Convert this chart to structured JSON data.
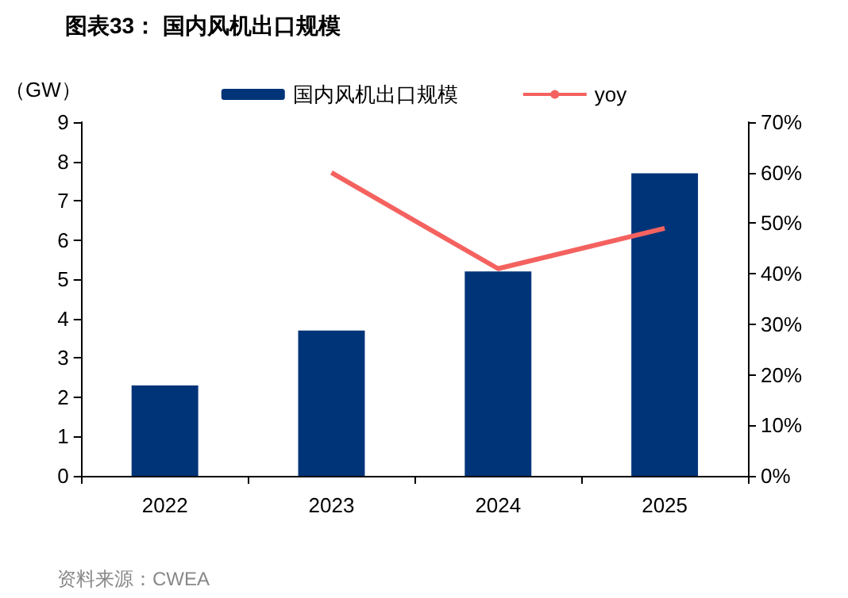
{
  "chart_data": {
    "type": "bar",
    "title": "图表33： 国内风机出口规模",
    "ylabel": "（GW）",
    "categories": [
      "2022",
      "2023",
      "2024",
      "2025"
    ],
    "series": [
      {
        "name": "国内风机出口规模",
        "color": "#003479",
        "values": [
          2.3,
          3.7,
          5.2,
          7.7
        ]
      },
      {
        "name": "yoy",
        "type": "line",
        "axis": "y2",
        "color": "#f4625f",
        "values": [
          null,
          60,
          41,
          49
        ]
      }
    ],
    "ylim": [
      0,
      9
    ],
    "yticks": [
      0,
      1,
      2,
      3,
      4,
      5,
      6,
      7,
      8,
      9
    ],
    "y2lim": [
      0,
      70
    ],
    "y2ticks": [
      {
        "value": 0,
        "label": "0%"
      },
      {
        "value": 10,
        "label": "10%"
      },
      {
        "value": 20,
        "label": "20%"
      },
      {
        "value": 30,
        "label": "30%"
      },
      {
        "value": 40,
        "label": "40%"
      },
      {
        "value": 50,
        "label": "50%"
      },
      {
        "value": 60,
        "label": "60%"
      },
      {
        "value": 70,
        "label": "70%"
      }
    ],
    "legend": "top",
    "grid": false,
    "marker": "none",
    "annotations": [
      "资料来源：CWEA"
    ]
  }
}
